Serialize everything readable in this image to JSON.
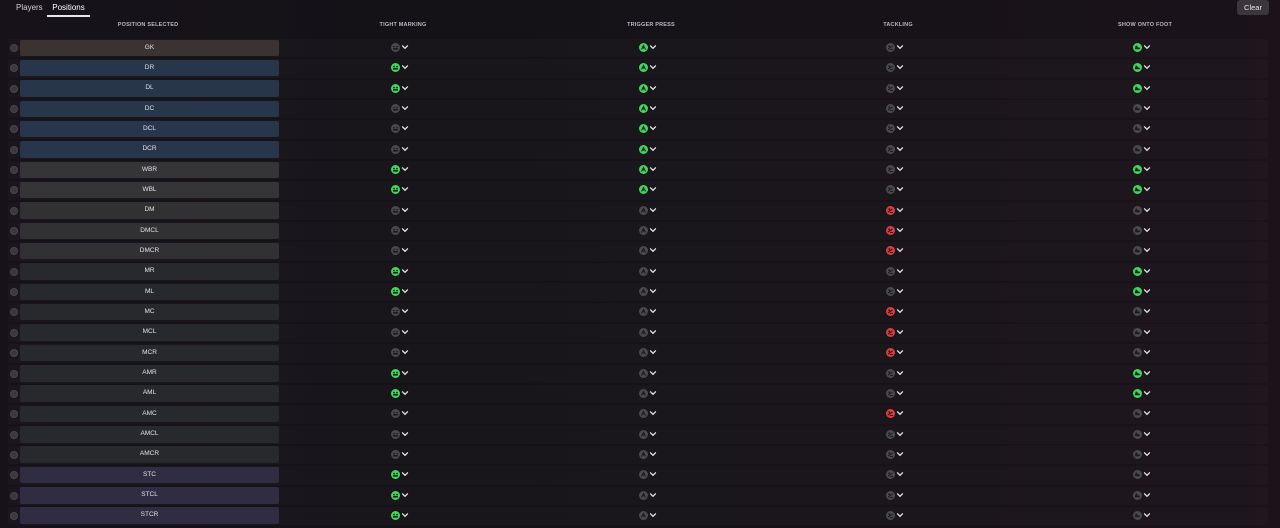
{
  "tabs": [
    {
      "label": "Players",
      "active": false
    },
    {
      "label": "Positions",
      "active": true
    }
  ],
  "clear_label": "Clear",
  "columns": {
    "position": "POSITION SELECTED",
    "tight_marking": "TIGHT MARKING",
    "trigger_press": "TRIGGER PRESS",
    "tackling": "TACKLING",
    "show_onto_foot": "SHOW ONTO FOOT"
  },
  "colors": {
    "green": "#3fd85a",
    "red": "#e03c3c",
    "off": "#4a4a4e"
  },
  "rows": [
    {
      "label": "GK",
      "group": "gk",
      "tight": "off",
      "press": "green",
      "tackle": "off",
      "foot": "green"
    },
    {
      "label": "DR",
      "group": "def",
      "tight": "green",
      "press": "green",
      "tackle": "off",
      "foot": "green"
    },
    {
      "label": "DL",
      "group": "def",
      "tight": "green",
      "press": "green",
      "tackle": "off",
      "foot": "green"
    },
    {
      "label": "DC",
      "group": "def",
      "tight": "off",
      "press": "green",
      "tackle": "off",
      "foot": "off"
    },
    {
      "label": "DCL",
      "group": "def",
      "tight": "off",
      "press": "green",
      "tackle": "off",
      "foot": "off"
    },
    {
      "label": "DCR",
      "group": "def",
      "tight": "off",
      "press": "green",
      "tackle": "off",
      "foot": "off"
    },
    {
      "label": "WBR",
      "group": "wb",
      "tight": "green",
      "press": "green",
      "tackle": "off",
      "foot": "green"
    },
    {
      "label": "WBL",
      "group": "wb",
      "tight": "green",
      "press": "green",
      "tackle": "off",
      "foot": "green"
    },
    {
      "label": "DM",
      "group": "mid",
      "tight": "off",
      "press": "off",
      "tackle": "red",
      "foot": "off"
    },
    {
      "label": "DMCL",
      "group": "mid",
      "tight": "off",
      "press": "off",
      "tackle": "red",
      "foot": "off"
    },
    {
      "label": "DMCR",
      "group": "mid",
      "tight": "off",
      "press": "off",
      "tackle": "red",
      "foot": "off"
    },
    {
      "label": "MR",
      "group": "att",
      "tight": "green",
      "press": "off",
      "tackle": "off",
      "foot": "green"
    },
    {
      "label": "ML",
      "group": "att",
      "tight": "green",
      "press": "off",
      "tackle": "off",
      "foot": "green"
    },
    {
      "label": "MC",
      "group": "att",
      "tight": "off",
      "press": "off",
      "tackle": "red",
      "foot": "off"
    },
    {
      "label": "MCL",
      "group": "att",
      "tight": "off",
      "press": "off",
      "tackle": "red",
      "foot": "off"
    },
    {
      "label": "MCR",
      "group": "att",
      "tight": "off",
      "press": "off",
      "tackle": "red",
      "foot": "off"
    },
    {
      "label": "AMR",
      "group": "att",
      "tight": "green",
      "press": "off",
      "tackle": "off",
      "foot": "green"
    },
    {
      "label": "AML",
      "group": "att",
      "tight": "green",
      "press": "off",
      "tackle": "off",
      "foot": "green"
    },
    {
      "label": "AMC",
      "group": "att",
      "tight": "off",
      "press": "off",
      "tackle": "red",
      "foot": "off"
    },
    {
      "label": "AMCL",
      "group": "att",
      "tight": "off",
      "press": "off",
      "tackle": "off",
      "foot": "off"
    },
    {
      "label": "AMCR",
      "group": "att",
      "tight": "off",
      "press": "off",
      "tackle": "off",
      "foot": "off"
    },
    {
      "label": "STC",
      "group": "st",
      "tight": "green",
      "press": "off",
      "tackle": "off",
      "foot": "off"
    },
    {
      "label": "STCL",
      "group": "st",
      "tight": "green",
      "press": "off",
      "tackle": "off",
      "foot": "off"
    },
    {
      "label": "STCR",
      "group": "st",
      "tight": "green",
      "press": "off",
      "tackle": "off",
      "foot": "off"
    }
  ]
}
